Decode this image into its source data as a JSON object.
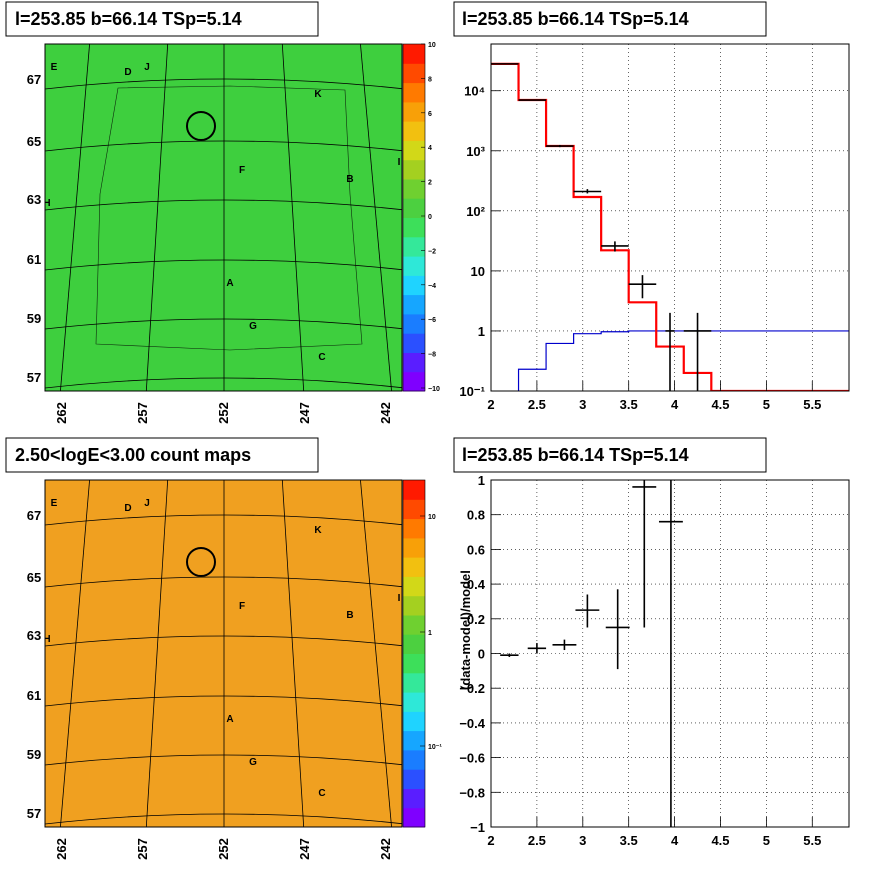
{
  "colors": {
    "data": "#000000",
    "model": "#ff0000",
    "background_model": "#0000cc",
    "grid": "#000000",
    "ts_map_base": "#3ecf3e",
    "count_map_base": "#f0a020",
    "palette": [
      "#7f00ff",
      "#5a1eff",
      "#2b50ff",
      "#1a7dff",
      "#16a6ff",
      "#1fd3ff",
      "#2ee8d8",
      "#34e89a",
      "#3ddf5a",
      "#4cd040",
      "#6fd030",
      "#a4d020",
      "#d2d818",
      "#f2c010",
      "#f8a008",
      "#ff7a00",
      "#ff4a00",
      "#ff1a00"
    ]
  },
  "panels": {
    "ts_map": {
      "title": "l=253.85 b=66.14 TSp=5.14"
    },
    "spectrum": {
      "title": "l=253.85 b=66.14 TSp=5.14"
    },
    "count_map": {
      "title": "2.50<logE<3.00 count maps"
    },
    "residual": {
      "title": "l=253.85 b=66.14 TSp=5.14"
    }
  },
  "sky_maps": {
    "lon_ticks": [
      "262",
      "257",
      "252",
      "247",
      "242"
    ],
    "lat_ticks": [
      "67",
      "65",
      "63",
      "61",
      "59",
      "57"
    ],
    "source_labels": [
      "E",
      "D",
      "J",
      "K",
      "F",
      "B",
      "H",
      "A",
      "G",
      "C",
      "I"
    ],
    "ts_colorbar_ticks": [
      "10",
      "8",
      "6",
      "4",
      "2",
      "0",
      "−2",
      "−4",
      "−6",
      "−8",
      "−10"
    ],
    "count_colorbar_ticks": [
      "10",
      "1",
      "10⁻¹"
    ]
  },
  "chart_data": [
    {
      "type": "line",
      "title": "l=253.85 b=66.14 TSp=5.14",
      "xlabel": "",
      "ylabel": "",
      "xlim": [
        2,
        5.9
      ],
      "ylim": [
        0.1,
        60000
      ],
      "yscale": "log",
      "grid": true,
      "x_ticks": [
        "2",
        "2.5",
        "3",
        "3.5",
        "4",
        "4.5",
        "5",
        "5.5"
      ],
      "y_ticks": [
        "10⁻¹",
        "1",
        "10",
        "10²",
        "10³",
        "10⁴"
      ],
      "data_points": [
        {
          "x": 2.15,
          "y": 28000,
          "xerr": 0.15,
          "ylo": 27500,
          "yhi": 28500
        },
        {
          "x": 2.45,
          "y": 7000,
          "xerr": 0.15,
          "ylo": 6900,
          "yhi": 7100
        },
        {
          "x": 2.75,
          "y": 1200,
          "xerr": 0.15,
          "ylo": 1150,
          "yhi": 1250
        },
        {
          "x": 3.05,
          "y": 210,
          "xerr": 0.15,
          "ylo": 195,
          "yhi": 230
        },
        {
          "x": 3.35,
          "y": 26,
          "xerr": 0.15,
          "ylo": 21,
          "yhi": 31
        },
        {
          "x": 3.65,
          "y": 6,
          "xerr": 0.15,
          "ylo": 3.5,
          "yhi": 8.5
        },
        {
          "x": 3.95,
          "y": 1,
          "xerr": 0.05,
          "ylo": 0.1,
          "yhi": 2
        },
        {
          "x": 4.25,
          "y": 1,
          "xerr": 0.15,
          "ylo": 0.1,
          "yhi": 2
        }
      ],
      "model_steps": {
        "edges": [
          2.0,
          2.3,
          2.6,
          2.9,
          3.2,
          3.5,
          3.8,
          4.1,
          4.4,
          5.9
        ],
        "values": [
          28000,
          7000,
          1200,
          170,
          22,
          3,
          0.55,
          0.2,
          0.1
        ]
      },
      "background_steps": {
        "edges": [
          2.3,
          2.6,
          2.9,
          3.2,
          3.5,
          5.9
        ],
        "values": [
          0.23,
          0.62,
          0.9,
          0.97,
          1.0
        ]
      }
    },
    {
      "type": "scatter",
      "title": "l=253.85 b=66.14 TSp=5.14",
      "xlabel": "",
      "ylabel": "(data-model)/model",
      "xlim": [
        2,
        5.9
      ],
      "ylim": [
        -1,
        1
      ],
      "grid": true,
      "x_ticks": [
        "2",
        "2.5",
        "3",
        "3.5",
        "4",
        "4.5",
        "5",
        "5.5"
      ],
      "y_ticks": [
        "−1",
        "−0.8",
        "−0.6",
        "−0.4",
        "−0.2",
        "0",
        "0.2",
        "0.4",
        "0.6",
        "0.8",
        "1"
      ],
      "points": [
        {
          "x": 2.2,
          "y": -0.01,
          "xerr": 0.1,
          "ylo": -0.02,
          "yhi": 0.0
        },
        {
          "x": 2.5,
          "y": 0.03,
          "xerr": 0.1,
          "ylo": 0.0,
          "yhi": 0.06
        },
        {
          "x": 2.8,
          "y": 0.05,
          "xerr": 0.13,
          "ylo": 0.02,
          "yhi": 0.08
        },
        {
          "x": 3.05,
          "y": 0.25,
          "xerr": 0.13,
          "ylo": 0.15,
          "yhi": 0.34
        },
        {
          "x": 3.38,
          "y": 0.15,
          "xerr": 0.13,
          "ylo": -0.09,
          "yhi": 0.37
        },
        {
          "x": 3.67,
          "y": 0.96,
          "xerr": 0.13,
          "ylo": 0.15,
          "yhi": 1.0
        },
        {
          "x": 3.96,
          "y": 0.76,
          "xerr": 0.13,
          "ylo": -1.0,
          "yhi": 1.0
        }
      ]
    }
  ]
}
